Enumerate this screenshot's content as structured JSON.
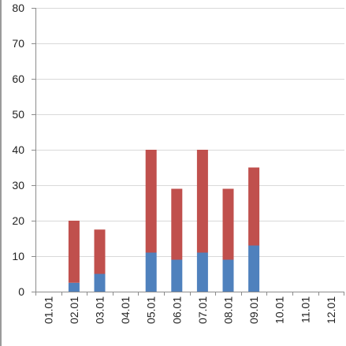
{
  "chart_data": {
    "type": "bar",
    "stacked": true,
    "title": "",
    "xlabel": "",
    "ylabel": "",
    "ylim": [
      0,
      80
    ],
    "yticks": [
      0,
      10,
      20,
      30,
      40,
      50,
      60,
      70,
      80
    ],
    "grid": "horizontal",
    "legend": "none",
    "categories": [
      "01.01",
      "02.01",
      "03.01",
      "04.01",
      "05.01",
      "06.01",
      "07.01",
      "08.01",
      "09.01",
      "10.01",
      "11.01",
      "12.01"
    ],
    "series": [
      {
        "color": "#4f81bd",
        "values": [
          0,
          2.5,
          5,
          0,
          11,
          9,
          11,
          9,
          13,
          0,
          0,
          0
        ]
      },
      {
        "color": "#c0504d",
        "values": [
          0,
          17.5,
          12.5,
          0,
          29,
          20,
          29,
          20,
          22,
          0,
          0,
          0
        ]
      }
    ]
  }
}
